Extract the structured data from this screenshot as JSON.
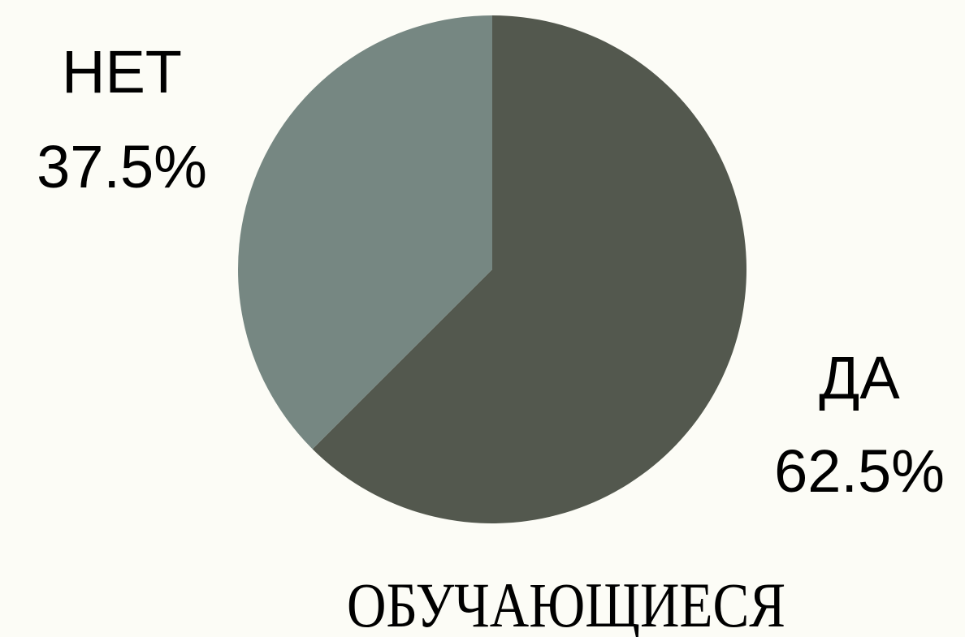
{
  "chart_data": {
    "type": "pie",
    "title": "ОБУЧАЮЩИЕСЯ",
    "categories": [
      "ДА",
      "НЕТ"
    ],
    "values": [
      62.5,
      37.5
    ],
    "value_labels": [
      "62.5%",
      "37.5%"
    ],
    "colors": [
      "#53584e",
      "#768782"
    ]
  }
}
